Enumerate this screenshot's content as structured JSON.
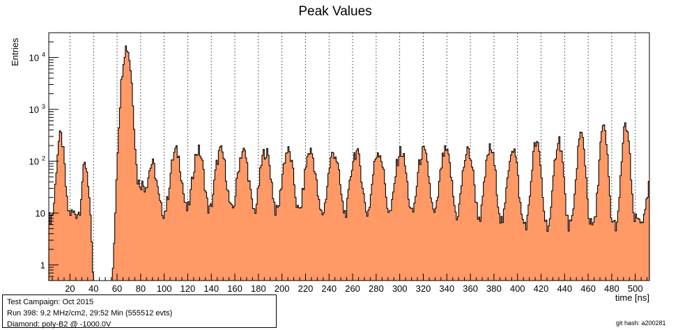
{
  "chart_data": {
    "type": "bar",
    "title": "Peak Values",
    "xlabel": "time [ns]",
    "ylabel": "Entries",
    "xlim": [
      2,
      512
    ],
    "ylim": [
      0.5,
      30000
    ],
    "log_y": true,
    "x_ticks": [
      20,
      40,
      60,
      80,
      100,
      120,
      140,
      160,
      180,
      200,
      220,
      240,
      260,
      280,
      300,
      320,
      340,
      360,
      380,
      400,
      420,
      440,
      460,
      480,
      500
    ],
    "y_ticks": [
      {
        "value": 1,
        "label": "1"
      },
      {
        "value": 10,
        "label": "10"
      },
      {
        "value": 100,
        "label": "10",
        "exp": "2"
      },
      {
        "value": 1000,
        "label": "10",
        "exp": "3"
      },
      {
        "value": 10000,
        "label": "10",
        "exp": "4"
      }
    ],
    "gridlines_x": "dotted",
    "fill_color": "#ff9966",
    "line_color": "#000000",
    "peaks": [
      {
        "x": 12,
        "y": 300,
        "w": 2.0
      },
      {
        "x": 33,
        "y": 85,
        "w": 2.0
      },
      {
        "x": 68,
        "y": 16000,
        "w": 2.5
      },
      {
        "x": 90,
        "y": 70,
        "w": 2.5
      },
      {
        "x": 110,
        "y": 150,
        "w": 3.0
      },
      {
        "x": 129,
        "y": 155,
        "w": 3.0
      },
      {
        "x": 148,
        "y": 150,
        "w": 3.0
      },
      {
        "x": 167,
        "y": 150,
        "w": 3.0
      },
      {
        "x": 186,
        "y": 150,
        "w": 3.0
      },
      {
        "x": 205,
        "y": 150,
        "w": 3.0
      },
      {
        "x": 224,
        "y": 150,
        "w": 3.0
      },
      {
        "x": 244,
        "y": 140,
        "w": 3.0
      },
      {
        "x": 263,
        "y": 145,
        "w": 3.0
      },
      {
        "x": 282,
        "y": 150,
        "w": 3.0
      },
      {
        "x": 301,
        "y": 150,
        "w": 3.0
      },
      {
        "x": 320,
        "y": 150,
        "w": 3.0
      },
      {
        "x": 339,
        "y": 150,
        "w": 3.0
      },
      {
        "x": 358,
        "y": 150,
        "w": 3.0
      },
      {
        "x": 377,
        "y": 170,
        "w": 2.8
      },
      {
        "x": 396,
        "y": 180,
        "w": 2.6
      },
      {
        "x": 416,
        "y": 220,
        "w": 2.4
      },
      {
        "x": 435,
        "y": 260,
        "w": 2.3
      },
      {
        "x": 454,
        "y": 320,
        "w": 2.2
      },
      {
        "x": 473,
        "y": 420,
        "w": 2.1
      },
      {
        "x": 492,
        "y": 480,
        "w": 2.0
      }
    ],
    "baseline": [
      {
        "x": 2,
        "y": 8
      },
      {
        "x": 9,
        "y": 10
      },
      {
        "x": 20,
        "y": 10
      },
      {
        "x": 27,
        "y": 10
      },
      {
        "x": 38,
        "y": 0.3
      },
      {
        "x": 60,
        "y": 0.3
      },
      {
        "x": 64,
        "y": 15
      },
      {
        "x": 80,
        "y": 40
      },
      {
        "x": 100,
        "y": 10
      },
      {
        "x": 300,
        "y": 8
      },
      {
        "x": 420,
        "y": 6
      },
      {
        "x": 480,
        "y": 6
      },
      {
        "x": 508,
        "y": 8
      },
      {
        "x": 512,
        "y": 40
      }
    ]
  },
  "info_box": {
    "line1": "Test Campaign: Oct 2015",
    "line2": "Run 398: 9.2 MHz/cm2, 29:52 Min (555512 evts)",
    "line3": "Diamond: poly-B2 @ -1000.0V"
  },
  "git_hash": "git hash: a200281"
}
